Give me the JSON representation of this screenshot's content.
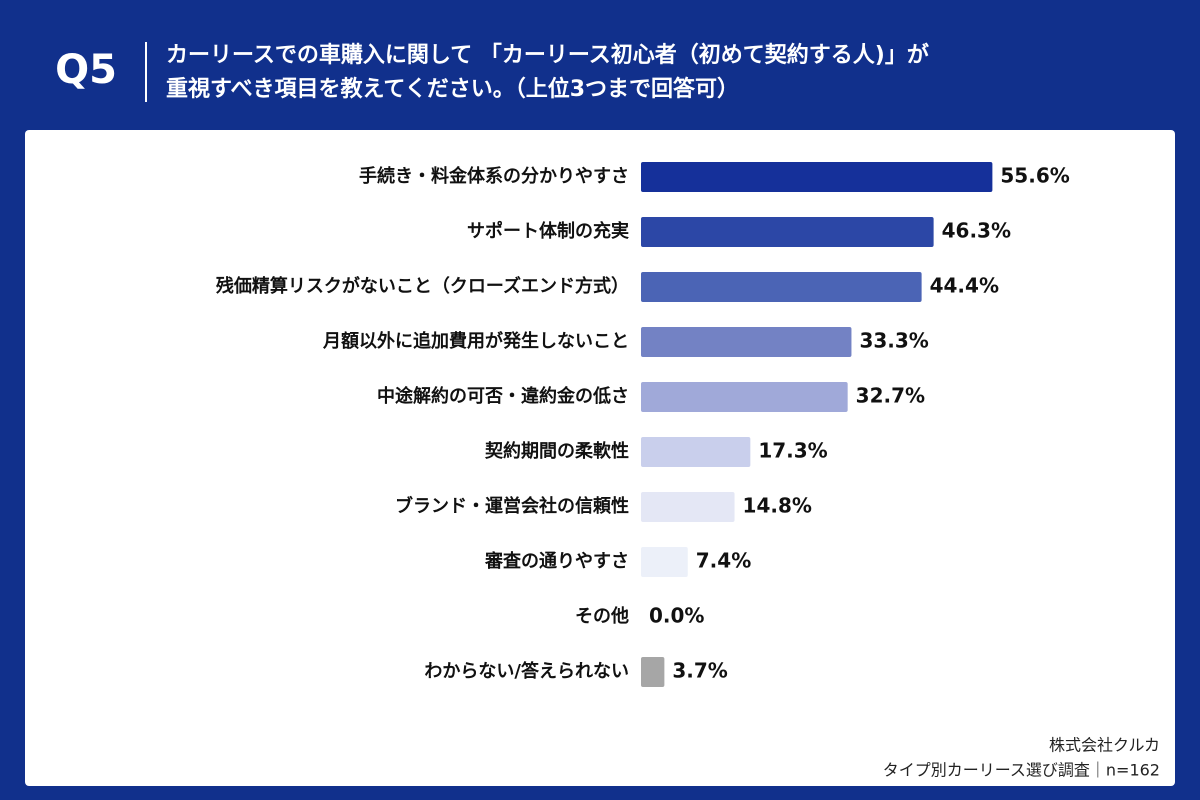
{
  "chart_data": {
    "type": "barh",
    "question": "Q5",
    "title": [
      "カーリースでの車購入に関して 「カーリース初心者（初めて契約する人)」が",
      "重視すべき項目を教えてください。（上位3つまで回答可）"
    ],
    "categories": [
      "手続き・料金体系の分かりやすさ",
      "サポート体制の充実",
      "残価精算リスクがないこと（クローズエンド方式）",
      "月額以外に追加費用が発生しないこと",
      "中途解約の可否・違約金の低さ",
      "契約期間の柔軟性",
      "ブランド・運営会社の信頼性",
      "審査の通りやすさ",
      "その他",
      "わからない/答えられない"
    ],
    "values": [
      55.6,
      46.3,
      44.4,
      33.3,
      32.7,
      17.3,
      14.8,
      7.4,
      0.0,
      3.7
    ],
    "value_labels": [
      "55.6%",
      "46.3%",
      "44.4%",
      "33.3%",
      "32.7%",
      "17.3%",
      "14.8%",
      "7.4%",
      "0.0%",
      "3.7%"
    ],
    "colors": [
      "#15309a",
      "#2c47a6",
      "#4b64b5",
      "#7382c4",
      "#a0a9d9",
      "#c9cfec",
      "#e4e7f5",
      "#ecf0f9",
      "#f0f2f9",
      "#a6a6a6"
    ],
    "source": [
      "株式会社クルカ",
      "タイプ別カーリース選び調査｜n=162"
    ]
  }
}
